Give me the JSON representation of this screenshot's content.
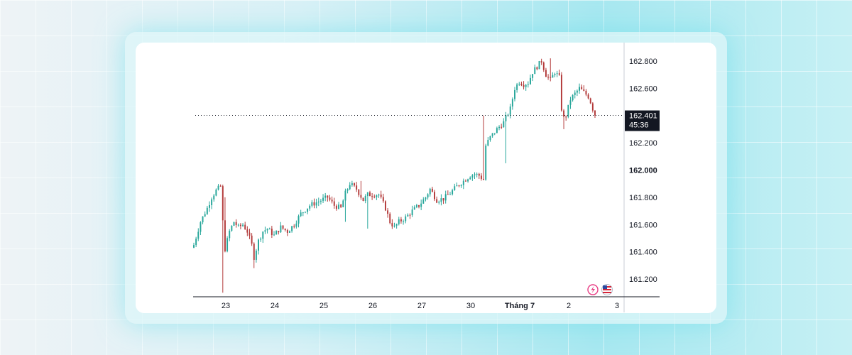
{
  "chart_data": {
    "type": "candlestick",
    "y_ticks": [
      "162.800",
      "162.600",
      "162.200",
      "162.000",
      "161.800",
      "161.600",
      "161.400",
      "161.200"
    ],
    "y_tick_values": [
      162.8,
      162.6,
      162.2,
      162.0,
      161.8,
      161.6,
      161.4,
      161.2
    ],
    "bold_tick": "162.000",
    "x_ticks": [
      "23",
      "24",
      "25",
      "26",
      "27",
      "30",
      "Tháng 7",
      "2",
      "3"
    ],
    "ylim": [
      161.08,
      162.9
    ],
    "last_price": "162.401",
    "last_price_value": 162.401,
    "countdown": "45:36",
    "bull_color": "#26a69a",
    "bear_color": "#b33a3a",
    "price_line_color": "#131722",
    "anchors": [
      [
        0,
        161.45
      ],
      [
        3,
        161.62
      ],
      [
        6,
        161.72
      ],
      [
        8,
        161.8
      ],
      [
        10,
        161.85
      ],
      [
        12,
        161.88
      ],
      [
        13,
        161.62
      ],
      [
        14,
        161.42
      ],
      [
        16,
        161.55
      ],
      [
        18,
        161.62
      ],
      [
        20,
        161.58
      ],
      [
        22,
        161.6
      ],
      [
        24,
        161.55
      ],
      [
        26,
        161.45
      ],
      [
        27,
        161.36
      ],
      [
        29,
        161.48
      ],
      [
        31,
        161.55
      ],
      [
        33,
        161.57
      ],
      [
        36,
        161.52
      ],
      [
        39,
        161.58
      ],
      [
        42,
        161.55
      ],
      [
        45,
        161.6
      ],
      [
        48,
        161.68
      ],
      [
        52,
        161.74
      ],
      [
        56,
        161.77
      ],
      [
        60,
        161.8
      ],
      [
        63,
        161.74
      ],
      [
        66,
        161.72
      ],
      [
        68,
        161.83
      ],
      [
        70,
        161.9
      ],
      [
        73,
        161.86
      ],
      [
        76,
        161.78
      ],
      [
        78,
        161.82
      ],
      [
        80,
        161.82
      ],
      [
        83,
        161.82
      ],
      [
        86,
        161.72
      ],
      [
        88,
        161.62
      ],
      [
        90,
        161.58
      ],
      [
        92,
        161.62
      ],
      [
        95,
        161.65
      ],
      [
        98,
        161.7
      ],
      [
        101,
        161.74
      ],
      [
        104,
        161.8
      ],
      [
        106,
        161.86
      ],
      [
        109,
        161.78
      ],
      [
        112,
        161.79
      ],
      [
        115,
        161.83
      ],
      [
        118,
        161.88
      ],
      [
        121,
        161.92
      ],
      [
        124,
        161.96
      ],
      [
        126,
        161.97
      ],
      [
        128,
        161.96
      ],
      [
        130,
        161.93
      ],
      [
        131,
        162.18
      ],
      [
        133,
        162.24
      ],
      [
        136,
        162.3
      ],
      [
        139,
        162.35
      ],
      [
        142,
        162.45
      ],
      [
        144,
        162.6
      ],
      [
        146,
        162.65
      ],
      [
        148,
        162.63
      ],
      [
        150,
        162.64
      ],
      [
        152,
        162.72
      ],
      [
        154,
        162.76
      ],
      [
        156,
        162.8
      ],
      [
        158,
        162.7
      ],
      [
        160,
        162.66
      ],
      [
        162,
        162.72
      ],
      [
        164,
        162.68
      ],
      [
        165,
        162.45
      ],
      [
        166,
        162.38
      ],
      [
        167,
        162.4
      ],
      [
        169,
        162.52
      ],
      [
        171,
        162.56
      ],
      [
        173,
        162.6
      ],
      [
        175,
        162.57
      ],
      [
        177,
        162.54
      ],
      [
        178,
        162.5
      ],
      [
        179,
        162.45
      ],
      [
        180,
        162.41
      ]
    ],
    "spikes": [
      {
        "i": 13,
        "low": 161.1
      },
      {
        "i": 14,
        "high": 161.8
      },
      {
        "i": 27,
        "low": 161.28
      },
      {
        "i": 68,
        "low": 161.62
      },
      {
        "i": 75,
        "high": 161.92
      },
      {
        "i": 78,
        "low": 161.57
      },
      {
        "i": 130,
        "high": 162.4
      },
      {
        "i": 140,
        "low": 162.05
      },
      {
        "i": 160,
        "high": 162.82
      },
      {
        "i": 166,
        "low": 162.3
      }
    ]
  }
}
